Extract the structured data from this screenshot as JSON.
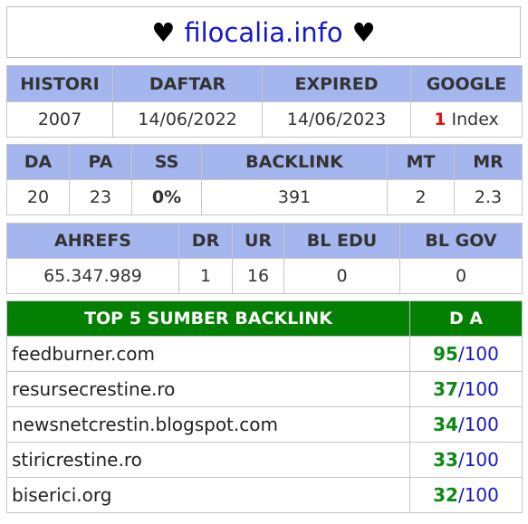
{
  "title": {
    "heart_left": "♥",
    "site": "filocalia.info",
    "heart_right": "♥"
  },
  "summary1": {
    "headers": [
      "HISTORI",
      "DAFTAR",
      "EXPIRED",
      "GOOGLE"
    ],
    "histori": "2007",
    "daftar": "14/06/2022",
    "expired": "14/06/2023",
    "google_count": "1",
    "google_label": "Index"
  },
  "summary2": {
    "headers": [
      "DA",
      "PA",
      "SS",
      "BACKLINK",
      "MT",
      "MR"
    ],
    "values": [
      "20",
      "23",
      "0%",
      "391",
      "2",
      "2.3"
    ]
  },
  "summary3": {
    "headers": [
      "AHREFS",
      "DR",
      "UR",
      "BL EDU",
      "BL GOV"
    ],
    "values": [
      "65.347.989",
      "1",
      "16",
      "0",
      "0"
    ]
  },
  "backlinks": {
    "header_source": "TOP 5 SUMBER BACKLINK",
    "header_da": "D A",
    "rows": [
      {
        "domain": "feedburner.com",
        "da": "95",
        "max": "/100"
      },
      {
        "domain": "resursecrestine.ro",
        "da": "37",
        "max": "/100"
      },
      {
        "domain": "newsnetcrestin.blogspot.com",
        "da": "34",
        "max": "/100"
      },
      {
        "domain": "stiricrestine.ro",
        "da": "33",
        "max": "/100"
      },
      {
        "domain": "biserici.org",
        "da": "32",
        "max": "/100"
      }
    ]
  },
  "colors": {
    "header_bg": "#a5b5ee",
    "backlink_header_bg": "#037f03",
    "site_blue": "#1418c8",
    "ss_green": "#5acd1e",
    "index_red": "#e81010"
  }
}
